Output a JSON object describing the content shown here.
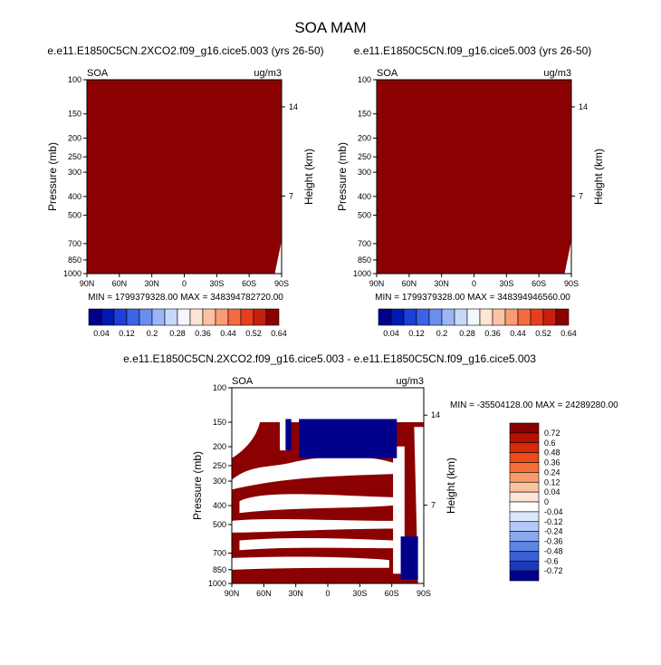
{
  "main_title": "SOA MAM",
  "colors": {
    "dark_red": "#8b0000",
    "dark_blue": "#00008b",
    "white": "#ffffff",
    "black": "#000000"
  },
  "chart_data": [
    {
      "type": "heatmap",
      "title": "e.e11.E1850C5CN.2XCO2.f09_g16.cice5.003 (yrs 26-50)",
      "left_label": "SOA",
      "right_label": "ug/m3",
      "ylabel": "Pressure (mb)",
      "ylabel_right": "Height (km)",
      "xticks": [
        "90N",
        "60N",
        "30N",
        "0",
        "30S",
        "60S",
        "90S"
      ],
      "yticks": [
        "100",
        "150",
        "200",
        "250",
        "300",
        "400",
        "500",
        "700",
        "850",
        "1000"
      ],
      "right_ticks": [
        "14",
        "7"
      ],
      "stats": "MIN = 1799379328.00   MAX = 348394782720.00",
      "colorbar": {
        "labels": [
          "0.04",
          "0.12",
          "0.2",
          "0.28",
          "0.36",
          "0.44",
          "0.52",
          "0.64"
        ],
        "colors": [
          "#00008b",
          "#0019b0",
          "#1d3fd6",
          "#3d63e5",
          "#6a8df0",
          "#9bb6f5",
          "#c6d8f8",
          "#f4f7ff",
          "#fde5d3",
          "#fbc3a3",
          "#f99c73",
          "#f36b40",
          "#e83d1c",
          "#c61f0f",
          "#8b0000"
        ]
      }
    },
    {
      "type": "heatmap",
      "title": "e.e11.E1850C5CN.f09_g16.cice5.003 (yrs 26-50)",
      "left_label": "SOA",
      "right_label": "ug/m3",
      "ylabel": "Pressure (mb)",
      "ylabel_right": "Height (km)",
      "xticks": [
        "90N",
        "60N",
        "30N",
        "0",
        "30S",
        "60S",
        "90S"
      ],
      "yticks": [
        "100",
        "150",
        "200",
        "250",
        "300",
        "400",
        "500",
        "700",
        "850",
        "1000"
      ],
      "right_ticks": [
        "14",
        "7"
      ],
      "stats": "MIN = 1799379328.00   MAX = 348394946560.00",
      "colorbar": {
        "labels": [
          "0.04",
          "0.12",
          "0.2",
          "0.28",
          "0.36",
          "0.44",
          "0.52",
          "0.64"
        ],
        "colors": [
          "#00008b",
          "#0019b0",
          "#1d3fd6",
          "#3d63e5",
          "#6a8df0",
          "#9bb6f5",
          "#c6d8f8",
          "#f4f7ff",
          "#fde5d3",
          "#fbc3a3",
          "#f99c73",
          "#f36b40",
          "#e83d1c",
          "#c61f0f",
          "#8b0000"
        ]
      }
    },
    {
      "type": "heatmap",
      "title": "e.e11.E1850C5CN.2XCO2.f09_g16.cice5.003 - e.e11.E1850C5CN.f09_g16.cice5.003",
      "left_label": "SOA",
      "right_label": "ug/m3",
      "ylabel": "Pressure (mb)",
      "ylabel_right": "Height (km)",
      "xticks": [
        "90N",
        "60N",
        "30N",
        "0",
        "30S",
        "60S",
        "90S"
      ],
      "yticks": [
        "100",
        "150",
        "200",
        "250",
        "300",
        "400",
        "500",
        "700",
        "850",
        "1000"
      ],
      "right_ticks": [
        "14",
        "7"
      ],
      "stats": "MIN = -35504128.00   MAX = 24289280.00",
      "colorbar": {
        "labels": [
          "0.72",
          "0.6",
          "0.48",
          "0.36",
          "0.24",
          "0.12",
          "0.04",
          "0",
          "-0.04",
          "-0.12",
          "-0.24",
          "-0.36",
          "-0.48",
          "-0.6",
          "-0.72"
        ],
        "colors": [
          "#8b0000",
          "#b31200",
          "#d62a0a",
          "#ef4a1a",
          "#f96e38",
          "#fb9a6a",
          "#fcc3a0",
          "#fde6d6",
          "#ffffff",
          "#dce7fb",
          "#b2c8f6",
          "#88a9ef",
          "#5f86e5",
          "#3a60d6",
          "#1b39b8",
          "#00008b"
        ]
      }
    }
  ]
}
